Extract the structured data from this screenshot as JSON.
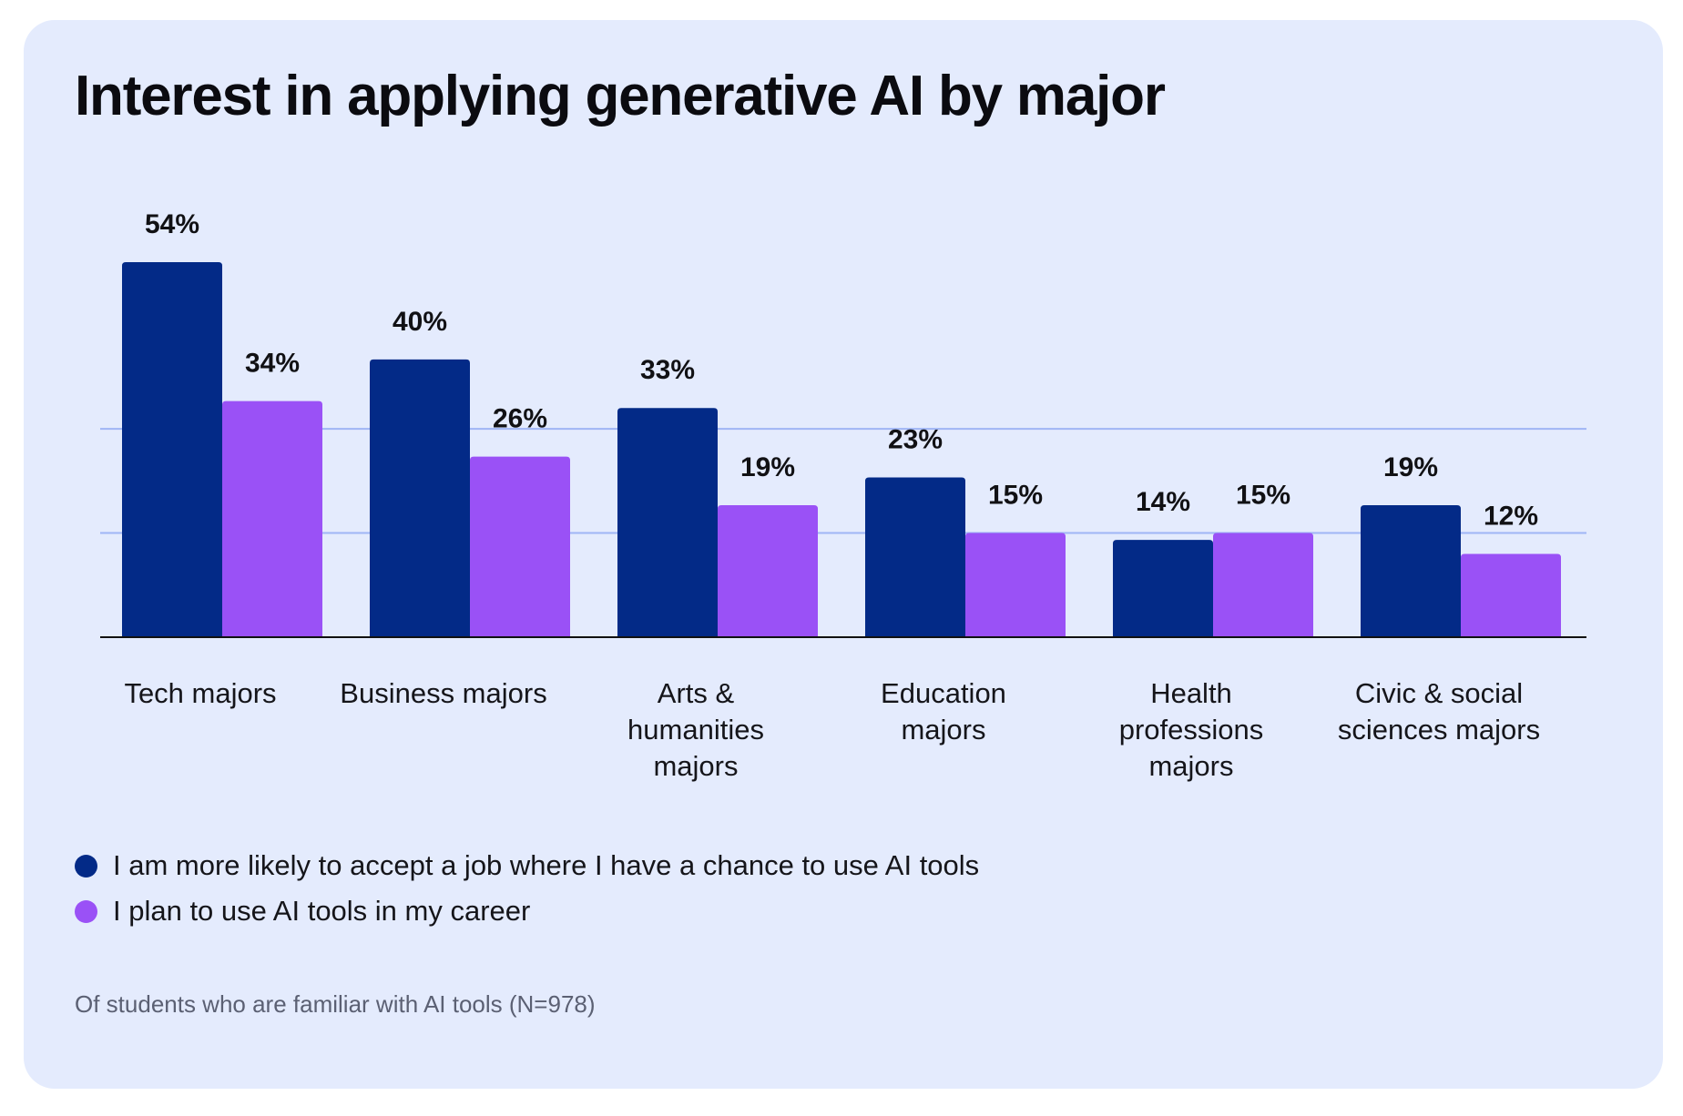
{
  "colors": {
    "background": "#e4ebfd",
    "series1": "#032a87",
    "series2": "#9a51f6",
    "gridline": "#9fb5f5",
    "axis": "#111111"
  },
  "chart_data": {
    "type": "bar",
    "title": "Interest in applying generative AI by major",
    "categories": [
      "Tech majors",
      "Business majors",
      "Arts & humanities majors",
      "Education majors",
      "Health professions majors",
      "Civic & social sciences majors"
    ],
    "series": [
      {
        "name": "I am more likely to accept a job where I have a chance to use AI tools",
        "values": [
          54,
          40,
          33,
          23,
          14,
          19
        ],
        "labels": [
          "54%",
          "40%",
          "33%",
          "23%",
          "14%",
          "19%"
        ]
      },
      {
        "name": "I plan to use AI tools in my career",
        "values": [
          34,
          26,
          19,
          15,
          15,
          12
        ],
        "labels": [
          "34%",
          "26%",
          "19%",
          "15%",
          "15%",
          "12%"
        ]
      }
    ],
    "ylim": [
      0,
      55
    ],
    "gridlines": [
      15,
      30
    ],
    "xlabel": "",
    "ylabel": "",
    "legend_position": "bottom-left",
    "note": "Of students who are familiar with AI tools (N=978)"
  }
}
